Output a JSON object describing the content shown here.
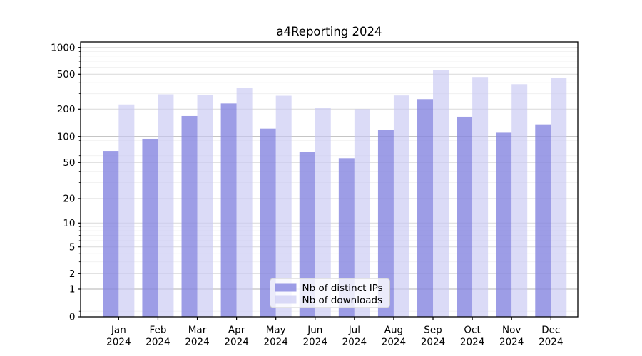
{
  "chart_data": {
    "type": "bar",
    "title": "a4Reporting 2024",
    "categories": [
      "Jan",
      "Feb",
      "Mar",
      "Apr",
      "May",
      "Jun",
      "Jul",
      "Aug",
      "Sep",
      "Oct",
      "Nov",
      "Dec"
    ],
    "category_year_label": "2024",
    "series": [
      {
        "name": "Nb of distinct IPs",
        "color": "rgba(133,133,224,0.8)",
        "solid_color_hex": "#a3a3ea",
        "values": [
          68,
          94,
          168,
          232,
          122,
          66,
          56,
          118,
          260,
          165,
          110,
          136
        ]
      },
      {
        "name": "Nb of downloads",
        "color": "rgba(200,200,243,0.65)",
        "solid_color_hex": "#dbdbf7",
        "values": [
          226,
          295,
          288,
          352,
          284,
          208,
          200,
          286,
          558,
          465,
          385,
          452
        ]
      }
    ],
    "xlabel": "",
    "ylabel": "",
    "yscale": "symlog",
    "ylim": [
      0,
      1000
    ],
    "ytick_labels": [
      "0",
      "1",
      "2",
      "5",
      "10",
      "20",
      "50",
      "100",
      "200",
      "500",
      "1000"
    ],
    "ytick_values": [
      0,
      1,
      2,
      5,
      10,
      20,
      50,
      100,
      200,
      500,
      1000
    ],
    "minor_tick_values": [
      0.2,
      0.5,
      3,
      4,
      6,
      7,
      8,
      9,
      30,
      40,
      60,
      70,
      80,
      90,
      300,
      400,
      600,
      700,
      800,
      900
    ],
    "grid": "both",
    "legend_position": "lower center",
    "colors": {
      "grid_minor": "#f0f0f0",
      "grid_major": "#d9d9d9",
      "grid_emphasis": "#b2b2b2",
      "axis": "#000000",
      "legend_border": "#cccccc"
    }
  }
}
